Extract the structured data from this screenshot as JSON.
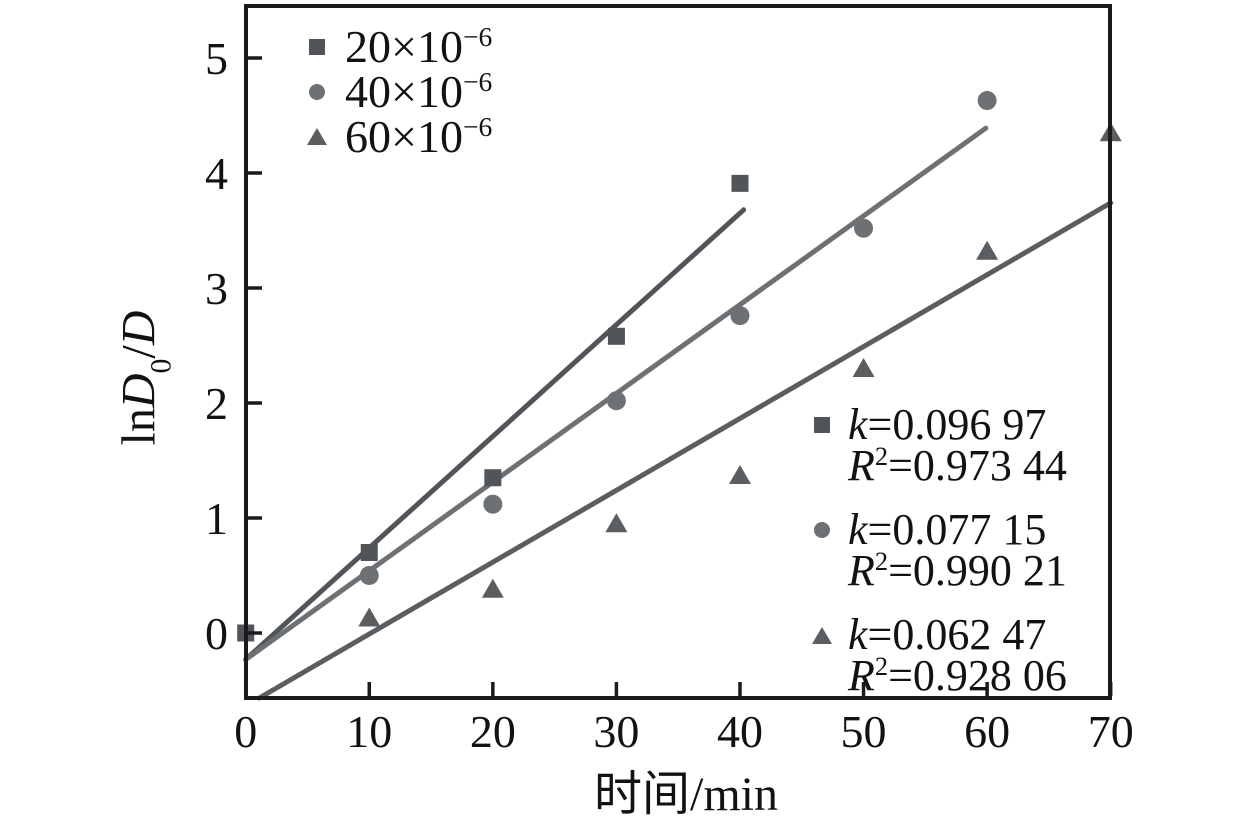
{
  "figure": {
    "background": "#ffffff",
    "frame_color": "#1b1b1b"
  },
  "axes": {
    "x": {
      "label": "时间/min"
    },
    "y": {
      "label": "lnD₀/D",
      "parts": [
        "ln",
        "D",
        "0",
        "/",
        "D"
      ]
    }
  },
  "legend": {
    "items": [
      {
        "marker": "square",
        "base": "20×10",
        "exp": "−6"
      },
      {
        "marker": "circle",
        "base": "40×10",
        "exp": "−6"
      },
      {
        "marker": "triangle",
        "base": "60×10",
        "exp": "−6"
      }
    ]
  },
  "stats": [
    {
      "marker": "square",
      "k_var": "k",
      "k_rest": "=0.096 97",
      "r_var": "R",
      "r_sup": "2",
      "r_rest": "=0.973 44"
    },
    {
      "marker": "circle",
      "k_var": "k",
      "k_rest": "=0.077 15",
      "r_var": "R",
      "r_sup": "2",
      "r_rest": "=0.990 21"
    },
    {
      "marker": "triangle",
      "k_var": "k",
      "k_rest": "=0.062 47",
      "r_var": "R",
      "r_sup": "2",
      "r_rest": "=0.928 06"
    }
  ],
  "chart_data": {
    "type": "scatter",
    "title": "",
    "xlabel": "时间/min",
    "ylabel": "lnD₀/D",
    "xlim": [
      0,
      70
    ],
    "ylim": [
      -0.57,
      5.46
    ],
    "x_ticks": [
      0,
      10,
      20,
      30,
      40,
      50,
      60,
      70
    ],
    "y_ticks": [
      0,
      1,
      2,
      3,
      4,
      5
    ],
    "grid": false,
    "legend_position": "top-left",
    "series": [
      {
        "name": "20×10⁻⁶",
        "marker": "square",
        "color": "#515458",
        "x": [
          0,
          10,
          20,
          30,
          40
        ],
        "y": [
          0.0,
          0.7,
          1.35,
          2.58,
          3.91
        ],
        "k": 0.09697,
        "r2": 0.97344,
        "fit_line": {
          "x": [
            0,
            40.3
          ],
          "y": [
            -0.23,
            3.68
          ]
        }
      },
      {
        "name": "40×10⁻⁶",
        "marker": "circle",
        "color": "#6e7174",
        "x": [
          10,
          20,
          30,
          40,
          50,
          60
        ],
        "y": [
          0.5,
          1.12,
          2.02,
          2.76,
          3.52,
          4.63
        ],
        "k": 0.07715,
        "r2": 0.99021,
        "fit_line": {
          "x": [
            0,
            59.9
          ],
          "y": [
            -0.23,
            4.39
          ]
        }
      },
      {
        "name": "60×10⁻⁶",
        "marker": "triangle",
        "color": "#5b5e61",
        "x": [
          10,
          20,
          30,
          40,
          50,
          60,
          70
        ],
        "y": [
          0.13,
          0.38,
          0.95,
          1.37,
          2.3,
          3.32,
          4.35
        ],
        "k": 0.06247,
        "r2": 0.92806,
        "fit_line": {
          "x": [
            1.1,
            70
          ],
          "y": [
            -0.565,
            3.74
          ]
        }
      }
    ]
  }
}
